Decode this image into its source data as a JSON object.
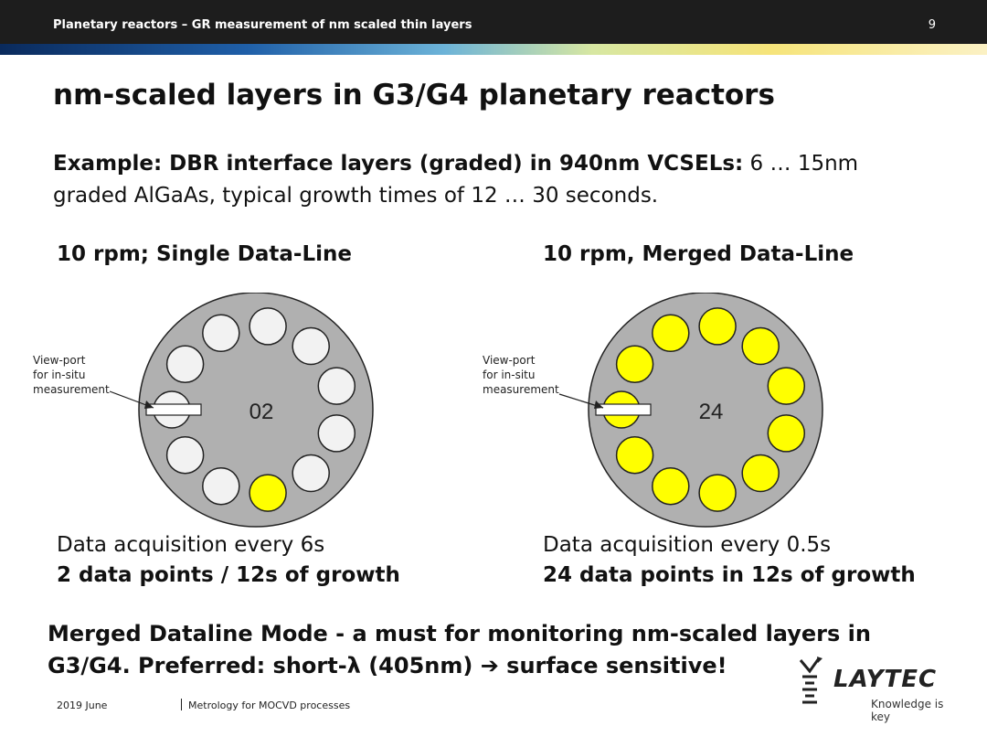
{
  "header": {
    "title": "Planetary reactors – GR measurement of nm scaled thin layers",
    "slide_number": "9"
  },
  "slide": {
    "title": "nm-scaled layers in G3/G4 planetary reactors",
    "example_bold": "Example: DBR interface layers (graded) in 940nm VCSELs:",
    "example_rest": " 6 … 15nm",
    "example_line2": "graded AlGaAs, typical growth times of 12 … 30 seconds."
  },
  "left": {
    "heading": "10 rpm; Single Data-Line",
    "counter": "02",
    "viewport_label": [
      "View-port",
      "for in-situ",
      "measurement"
    ],
    "acquisition": "Data acquisition every 6s",
    "points": "2 data points / 12s of growth"
  },
  "right": {
    "heading": "10 rpm, Merged Data-Line",
    "counter": "24",
    "viewport_label": [
      "View-port",
      "for in-situ",
      "measurement"
    ],
    "acquisition": "Data acquisition every 0.5s",
    "points": "24 data points in 12s of growth"
  },
  "conclusion": {
    "line1": "Merged Dataline Mode - a must for monitoring nm-scaled layers in",
    "line2": "G3/G4. Preferred: short-λ (405nm) ➔ surface sensitive!"
  },
  "footer": {
    "date": "2019 June",
    "text": "Metrology for MOCVD processes"
  },
  "logo": {
    "name": "LAYTEC",
    "tagline": "Knowledge is key"
  },
  "colors": {
    "topbar": "#1d1d1d",
    "platter": "#b0b0b0",
    "wafer_idle": "#f2f2f2",
    "wafer_measured": "#ffff00"
  }
}
